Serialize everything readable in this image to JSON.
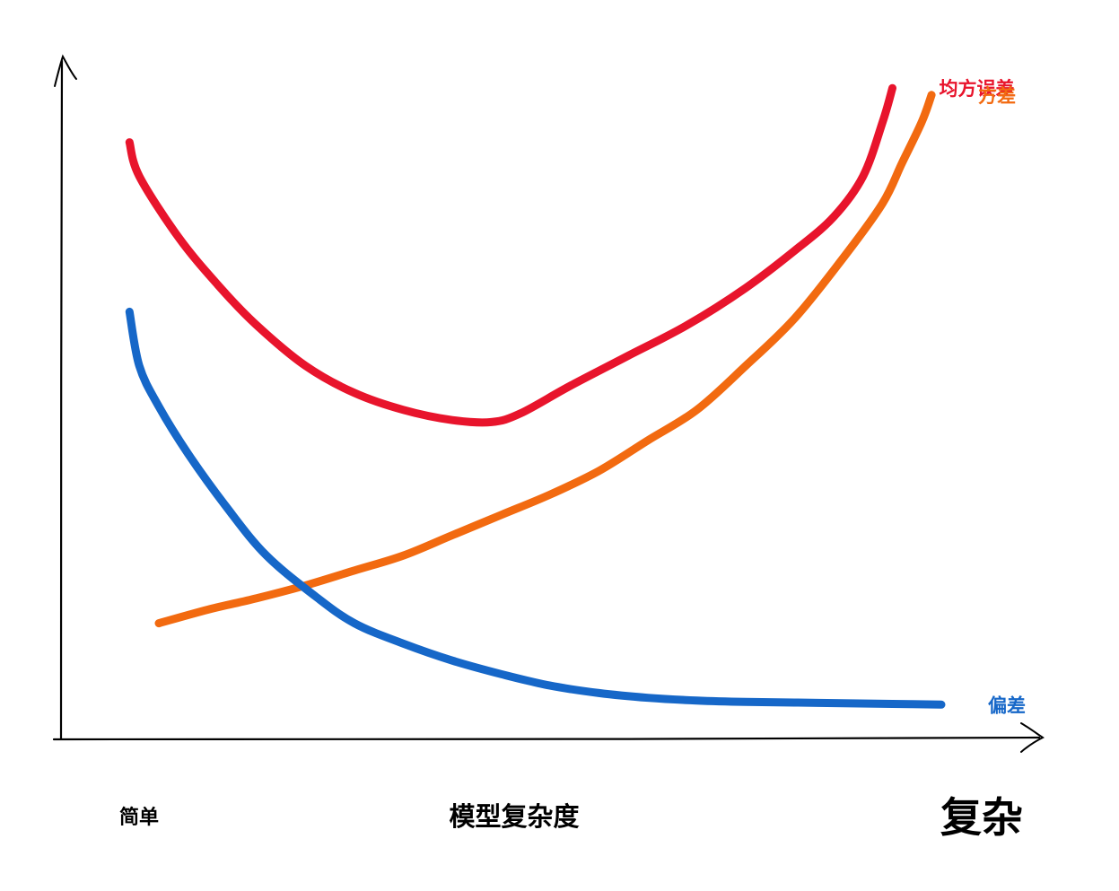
{
  "chart_data": {
    "type": "line",
    "title": "",
    "xlabel": "模型复杂度",
    "ylabel": "",
    "x_tick_labels": {
      "left": "简单",
      "right": "复杂"
    },
    "xlim": [
      0,
      1
    ],
    "ylim": [
      0,
      1
    ],
    "grid": false,
    "legend": "inline labels at right end of each curve",
    "series": [
      {
        "name": "均方误差",
        "color": "#e8142c",
        "x": [
          0.07,
          0.08,
          0.12,
          0.16,
          0.2,
          0.25,
          0.3,
          0.35,
          0.4,
          0.44,
          0.47,
          0.52,
          0.58,
          0.64,
          0.7,
          0.75,
          0.79,
          0.82,
          0.84,
          0.85
        ],
        "y": [
          0.88,
          0.83,
          0.74,
          0.67,
          0.61,
          0.55,
          0.51,
          0.485,
          0.47,
          0.467,
          0.48,
          0.52,
          0.565,
          0.61,
          0.665,
          0.72,
          0.77,
          0.83,
          0.91,
          0.96
        ]
      },
      {
        "name": "方差",
        "color": "#f26a10",
        "x": [
          0.1,
          0.15,
          0.2,
          0.25,
          0.3,
          0.35,
          0.4,
          0.45,
          0.5,
          0.55,
          0.6,
          0.65,
          0.7,
          0.75,
          0.8,
          0.84,
          0.86,
          0.88,
          0.89
        ],
        "y": [
          0.17,
          0.19,
          0.207,
          0.226,
          0.248,
          0.27,
          0.3,
          0.33,
          0.36,
          0.395,
          0.44,
          0.485,
          0.55,
          0.62,
          0.71,
          0.79,
          0.85,
          0.91,
          0.95
        ]
      },
      {
        "name": "偏差",
        "color": "#1667c8",
        "x": [
          0.07,
          0.08,
          0.1,
          0.13,
          0.17,
          0.21,
          0.26,
          0.3,
          0.35,
          0.4,
          0.45,
          0.5,
          0.55,
          0.6,
          0.65,
          0.7,
          0.75,
          0.8,
          0.85,
          0.9
        ],
        "y": [
          0.63,
          0.55,
          0.49,
          0.42,
          0.34,
          0.27,
          0.21,
          0.17,
          0.14,
          0.115,
          0.095,
          0.078,
          0.067,
          0.06,
          0.056,
          0.054,
          0.053,
          0.052,
          0.051,
          0.05
        ]
      }
    ]
  }
}
